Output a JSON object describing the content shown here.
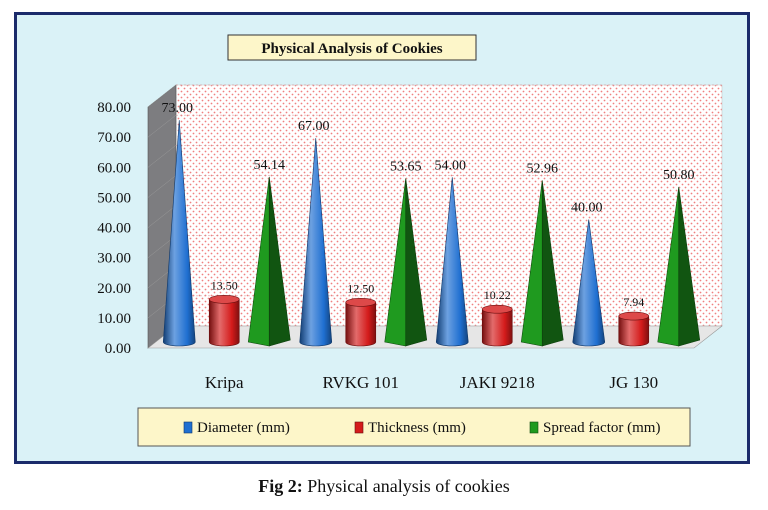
{
  "chart_data": {
    "type": "bar",
    "title": "Physical Analysis of Cookies",
    "categories": [
      "Kripa",
      "RVKG 101",
      "JAKI 9218",
      "JG 130"
    ],
    "series": [
      {
        "name": "Diameter (mm)",
        "shape": "cone",
        "color": "#1f6fd1",
        "values": [
          73.0,
          67.0,
          54.0,
          40.0
        ],
        "labels": [
          "73.00",
          "67.00",
          "54.00",
          "40.00"
        ]
      },
      {
        "name": "Thickness (mm)",
        "shape": "cylinder",
        "color": "#d41b1b",
        "values": [
          13.5,
          12.5,
          10.22,
          7.94
        ],
        "labels": [
          "13.50",
          "12.50",
          "10.22",
          "7.94"
        ]
      },
      {
        "name": "Spread factor (mm)",
        "shape": "pyramid",
        "color": "#1f9a1f",
        "values": [
          54.14,
          53.65,
          52.96,
          50.8
        ],
        "labels": [
          "54.14",
          "53.65",
          "52.96",
          "50.80"
        ]
      }
    ],
    "ylim": [
      0,
      80
    ],
    "yticks": [
      "0.00",
      "10.00",
      "20.00",
      "30.00",
      "40.00",
      "50.00",
      "60.00",
      "70.00",
      "80.00"
    ],
    "xlabel": "",
    "ylabel": "",
    "grid": true,
    "legend": "bottom"
  },
  "caption": {
    "prefix": "Fig 2:",
    "text": " Physical analysis of cookies"
  }
}
